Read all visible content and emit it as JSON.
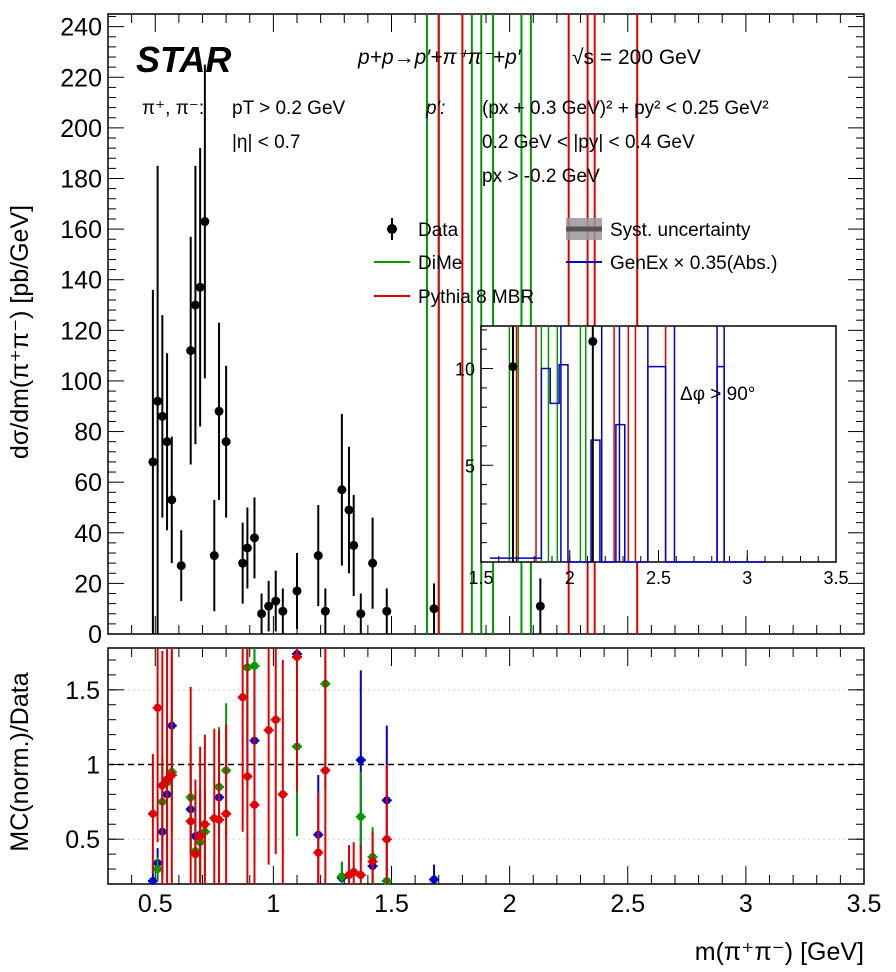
{
  "chart_data": {
    "type": "scatter",
    "experiment": "STAR",
    "process": "p+p→p′+π⁺π⁻+p′",
    "energy": "√s = 200 GeV",
    "cuts": {
      "pion_label": "π⁺, π⁻:",
      "pion_pt": "pT > 0.2 GeV",
      "pion_eta": "|η| < 0.7",
      "proton_label": "p′:",
      "proton_1": "(px + 0.3 GeV)² + py² < 0.25 GeV²",
      "proton_2": "0.2 GeV < |py| < 0.4 GeV",
      "proton_3": "px > -0.2 GeV"
    },
    "legend": {
      "data": "Data",
      "syst": "Syst. uncertainty",
      "dime": "DiMe",
      "genex": "GenEx × 0.35(Abs.)",
      "pythia": "Pythia 8 MBR"
    },
    "colors": {
      "data": "#000000",
      "dime": "#009900",
      "pythia": "#e00000",
      "genex": "#0000cc",
      "syst": "#999999"
    },
    "top": {
      "ylabel": "dσ/dm(π⁺π⁻) [pb/GeV]",
      "xlim": [
        0.3,
        3.5
      ],
      "ylim": [
        0,
        245
      ],
      "yticks": [
        0,
        20,
        40,
        60,
        80,
        100,
        120,
        140,
        160,
        180,
        200,
        220,
        240
      ],
      "data": [
        [
          0.49,
          68,
          68,
          68
        ],
        [
          0.51,
          92,
          92,
          93
        ],
        [
          0.53,
          86,
          40,
          40
        ],
        [
          0.55,
          76,
          35,
          35
        ],
        [
          0.57,
          53,
          25,
          25
        ],
        [
          0.61,
          27,
          14,
          14
        ],
        [
          0.65,
          112,
          45,
          45
        ],
        [
          0.67,
          130,
          55,
          55
        ],
        [
          0.69,
          137,
          55,
          55
        ],
        [
          0.71,
          163,
          62,
          62
        ],
        [
          0.75,
          31,
          22,
          22
        ],
        [
          0.77,
          88,
          35,
          35
        ],
        [
          0.8,
          76,
          30,
          30
        ],
        [
          0.87,
          28,
          16,
          16
        ],
        [
          0.89,
          34,
          16,
          16
        ],
        [
          0.92,
          38,
          16,
          16
        ],
        [
          0.95,
          8,
          8,
          8
        ],
        [
          0.98,
          11,
          10,
          10
        ],
        [
          1.01,
          13,
          12,
          12
        ],
        [
          1.04,
          9,
          9,
          9
        ],
        [
          1.1,
          17,
          15,
          15
        ],
        [
          1.19,
          31,
          20,
          20
        ],
        [
          1.22,
          9,
          9,
          9
        ],
        [
          1.29,
          57,
          30,
          30
        ],
        [
          1.32,
          49,
          25,
          25
        ],
        [
          1.34,
          35,
          20,
          20
        ],
        [
          1.37,
          8,
          8,
          8
        ],
        [
          1.42,
          28,
          18,
          18
        ],
        [
          1.48,
          9,
          9,
          9
        ],
        [
          1.68,
          10,
          10,
          10
        ],
        [
          2.13,
          11,
          11,
          11
        ]
      ],
      "green_lines": [
        1.65,
        1.7,
        1.84,
        1.88,
        1.93,
        2.05,
        2.09
      ],
      "red_lines": [
        1.7,
        1.8,
        2.25,
        2.33,
        2.36,
        2.54
      ],
      "inset": {
        "xlim": [
          1.5,
          3.5
        ],
        "ylim": [
          0,
          12.2
        ],
        "xticks": [
          1.5,
          2,
          2.5,
          3,
          3.5
        ],
        "xtick_labels": [
          "1.5",
          "2",
          "2.5",
          "3",
          "3.5"
        ],
        "yticks": [
          5,
          10
        ],
        "label": "Δφ > 90°",
        "data": [
          [
            1.68,
            10.1,
            10.1,
            10.1
          ],
          [
            2.13,
            11.4,
            11.4,
            11.4
          ]
        ],
        "green_lines": [
          1.66,
          1.71,
          1.84,
          1.88,
          1.93,
          2.06,
          2.09
        ],
        "red_lines": [
          1.7,
          1.81,
          2.25,
          2.33,
          2.37,
          2.54
        ],
        "blue_hist": {
          "edges": [
            1.55,
            1.84,
            1.89,
            1.94,
            1.99,
            2.12,
            2.17,
            2.26,
            2.31,
            2.39,
            2.44,
            2.54,
            2.59,
            2.7,
            2.83,
            2.87,
            3.1
          ],
          "values": [
            0.2,
            10,
            8.2,
            10.2,
            0,
            6.3,
            0,
            7.1,
            0,
            0,
            10.1,
            0,
            0,
            0,
            10.1,
            0
          ]
        },
        "blue_lines": [
          1.95,
          2.18,
          2.28,
          2.44,
          2.59,
          2.83,
          2.87
        ]
      }
    },
    "ratio": {
      "ylabel": "MC(norm.)/Data",
      "xlabel": "m(π⁺π⁻) [GeV]",
      "xlim": [
        0.3,
        3.5
      ],
      "ylim": [
        0.2,
        1.78
      ],
      "yticks": [
        0.5,
        1,
        1.5
      ],
      "ytick_labels": [
        "0.5",
        "1",
        "1.5"
      ],
      "xticks": [
        0.5,
        1,
        1.5,
        2,
        2.5,
        3,
        3.5
      ],
      "xtick_labels": [
        "0.5",
        "1",
        "1.5",
        "2",
        "2.5",
        "3",
        "3.5"
      ],
      "reference": 1,
      "dime": [
        [
          0.51,
          0.3,
          0.08
        ],
        [
          0.53,
          0.75,
          0.3
        ],
        [
          0.55,
          0.88,
          0.35
        ],
        [
          0.57,
          0.95,
          0.4
        ],
        [
          0.65,
          0.78,
          0.35
        ],
        [
          0.67,
          0.42,
          0.3
        ],
        [
          0.69,
          0.48,
          0.3
        ],
        [
          0.71,
          0.55,
          0.3
        ],
        [
          0.77,
          0.85,
          0.4
        ],
        [
          0.8,
          0.96,
          0.45
        ],
        [
          0.89,
          1.65,
          0.5
        ],
        [
          0.92,
          1.66,
          0.5
        ],
        [
          1.1,
          1.12,
          0.6
        ],
        [
          1.22,
          1.54,
          0.7
        ],
        [
          1.29,
          0.25,
          0.1
        ],
        [
          1.37,
          0.65,
          0.3
        ],
        [
          1.42,
          0.38,
          0.2
        ],
        [
          1.48,
          0.22,
          0.1
        ]
      ],
      "genex": [
        [
          0.49,
          0.22,
          0.1
        ],
        [
          0.51,
          0.34,
          0.1
        ],
        [
          0.53,
          0.55,
          0.3
        ],
        [
          0.55,
          0.8,
          0.35
        ],
        [
          0.57,
          1.26,
          0.5
        ],
        [
          0.65,
          0.7,
          0.3
        ],
        [
          0.67,
          0.52,
          0.3
        ],
        [
          0.69,
          0.53,
          0.3
        ],
        [
          0.77,
          0.78,
          0.4
        ],
        [
          0.89,
          1.65,
          0.8
        ],
        [
          0.92,
          1.16,
          0.8
        ],
        [
          1.1,
          1.74,
          0.8
        ],
        [
          1.19,
          0.53,
          0.4
        ],
        [
          1.29,
          0.24,
          0.1
        ],
        [
          1.37,
          1.03,
          0.6
        ],
        [
          1.42,
          0.32,
          0.15
        ],
        [
          1.48,
          0.76,
          0.5
        ],
        [
          1.68,
          0.23,
          0.1
        ]
      ],
      "pythia": [
        [
          0.49,
          0.67,
          0.4
        ],
        [
          0.51,
          1.38,
          0.9
        ],
        [
          0.53,
          0.86,
          0.9
        ],
        [
          0.55,
          0.9,
          0.9
        ],
        [
          0.57,
          0.93,
          0.9
        ],
        [
          0.65,
          0.62,
          0.9
        ],
        [
          0.67,
          0.4,
          0.5
        ],
        [
          0.69,
          0.52,
          0.6
        ],
        [
          0.71,
          0.6,
          0.6
        ],
        [
          0.75,
          0.64,
          0.6
        ],
        [
          0.77,
          0.63,
          0.6
        ],
        [
          0.8,
          0.67,
          0.6
        ],
        [
          0.87,
          1.45,
          0.9
        ],
        [
          0.89,
          0.92,
          0.9
        ],
        [
          0.92,
          0.73,
          0.9
        ],
        [
          0.98,
          1.23,
          0.9
        ],
        [
          1.01,
          1.3,
          0.9
        ],
        [
          1.04,
          0.8,
          0.9
        ],
        [
          1.1,
          1.72,
          0.9
        ],
        [
          1.19,
          0.41,
          0.4
        ],
        [
          1.22,
          0.96,
          0.9
        ],
        [
          1.32,
          0.26,
          0.2
        ],
        [
          1.34,
          0.28,
          0.2
        ],
        [
          1.37,
          0.26,
          0.2
        ],
        [
          1.42,
          0.35,
          0.2
        ],
        [
          1.48,
          0.5,
          0.5
        ]
      ]
    }
  }
}
